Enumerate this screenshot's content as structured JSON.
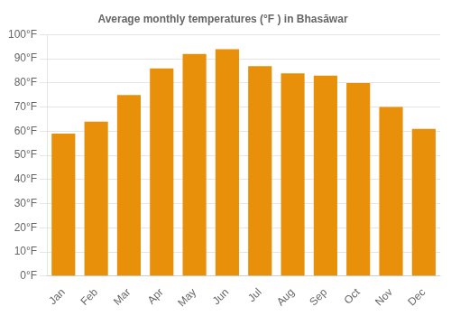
{
  "chart_data": {
    "type": "bar",
    "title": "Average monthly temperatures (°F ) in Bhasāwar",
    "categories": [
      "Jan",
      "Feb",
      "Mar",
      "Apr",
      "May",
      "Jun",
      "Jul",
      "Aug",
      "Sep",
      "Oct",
      "Nov",
      "Dec"
    ],
    "values": [
      59,
      64,
      75,
      86,
      92,
      94,
      87,
      84,
      83,
      80,
      70,
      61
    ],
    "color": "#E8900A",
    "ylim": [
      0,
      100
    ],
    "yticks": [
      {
        "value": 0,
        "label": "0°F"
      },
      {
        "value": 10,
        "label": "10°F"
      },
      {
        "value": 20,
        "label": "20°F"
      },
      {
        "value": 30,
        "label": "30°F"
      },
      {
        "value": 40,
        "label": "40°F"
      },
      {
        "value": 50,
        "label": "50°F"
      },
      {
        "value": 60,
        "label": "60°F"
      },
      {
        "value": 70,
        "label": "70°F"
      },
      {
        "value": 80,
        "label": "80°F"
      },
      {
        "value": 90,
        "label": "90°F"
      },
      {
        "value": 100,
        "label": "100°F"
      }
    ],
    "grid": true
  }
}
